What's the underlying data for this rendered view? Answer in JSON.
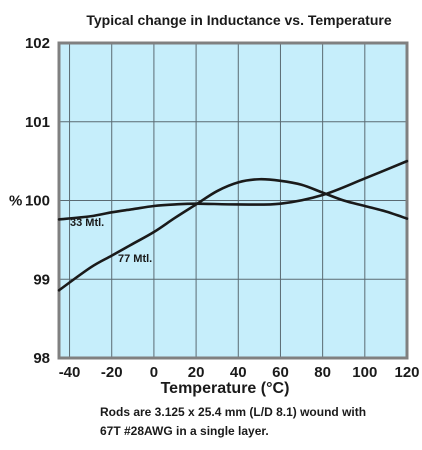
{
  "chart_data": {
    "type": "line",
    "title": "Typical change in Inductance vs. Temperature",
    "ylabel": "%",
    "xlabel": "Temperature (°C)",
    "xlim": [
      -45,
      120
    ],
    "ylim": [
      98,
      102
    ],
    "x_ticks": [
      "-40",
      "-20",
      "0",
      "20",
      "40",
      "60",
      "80",
      "100",
      "120"
    ],
    "x_tick_values": [
      -40,
      -20,
      0,
      20,
      40,
      60,
      80,
      100,
      120
    ],
    "y_ticks": [
      "98",
      "99",
      "100",
      "101",
      "102"
    ],
    "y_tick_values": [
      98,
      99,
      100,
      101,
      102
    ],
    "grid": true,
    "series": [
      {
        "name": "33 Mtl.",
        "color": "#1a1a1a",
        "x": [
          -45,
          -30,
          -20,
          -10,
          0,
          10,
          20,
          40,
          60,
          80,
          100,
          120
        ],
        "y": [
          99.76,
          99.8,
          99.85,
          99.89,
          99.93,
          99.95,
          99.96,
          99.95,
          99.96,
          100.07,
          100.28,
          100.5
        ]
      },
      {
        "name": "77 Mtl.",
        "color": "#1a1a1a",
        "x": [
          -45,
          -30,
          -20,
          -10,
          0,
          10,
          20,
          30,
          40,
          50,
          60,
          70,
          80,
          90,
          100,
          110,
          120
        ],
        "y": [
          98.86,
          99.15,
          99.3,
          99.45,
          99.6,
          99.78,
          99.95,
          100.12,
          100.23,
          100.27,
          100.25,
          100.2,
          100.1,
          100.0,
          99.93,
          99.86,
          99.77
        ]
      }
    ],
    "annotations": {
      "ylabel_display": "% 100",
      "temp_label": "Temperature (",
      "temp_unit": "°C",
      "temp_close": ")",
      "note_line1": "Rods are 3.125 x 25.4 mm (L/D 8.1) wound with",
      "note_line2": "67T #28AWG in a single layer."
    },
    "colors": {
      "plot_bg": "#c6eefb",
      "grid": "#5a6a72",
      "frame": "#808080",
      "line": "#1a1a1a"
    }
  }
}
